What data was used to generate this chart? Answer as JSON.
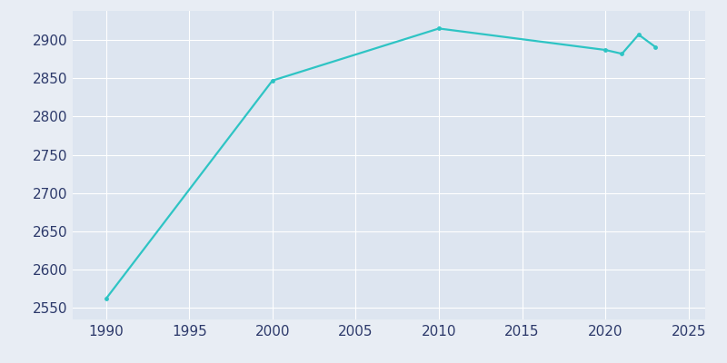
{
  "years": [
    1990,
    2000,
    2010,
    2020,
    2021,
    2022,
    2023
  ],
  "population": [
    2562,
    2847,
    2915,
    2887,
    2882,
    2907,
    2891
  ],
  "line_color": "#2ec4c4",
  "fig_bg_color": "#e8edf4",
  "plot_bg_color": "#dde5f0",
  "grid_color": "#ffffff",
  "tick_color": "#2d3a6b",
  "xlim": [
    1988,
    2026
  ],
  "ylim": [
    2535,
    2938
  ],
  "xticks": [
    1990,
    1995,
    2000,
    2005,
    2010,
    2015,
    2020,
    2025
  ],
  "yticks": [
    2550,
    2600,
    2650,
    2700,
    2750,
    2800,
    2850,
    2900
  ],
  "linewidth": 1.6,
  "markersize": 3.5,
  "tick_fontsize": 11
}
